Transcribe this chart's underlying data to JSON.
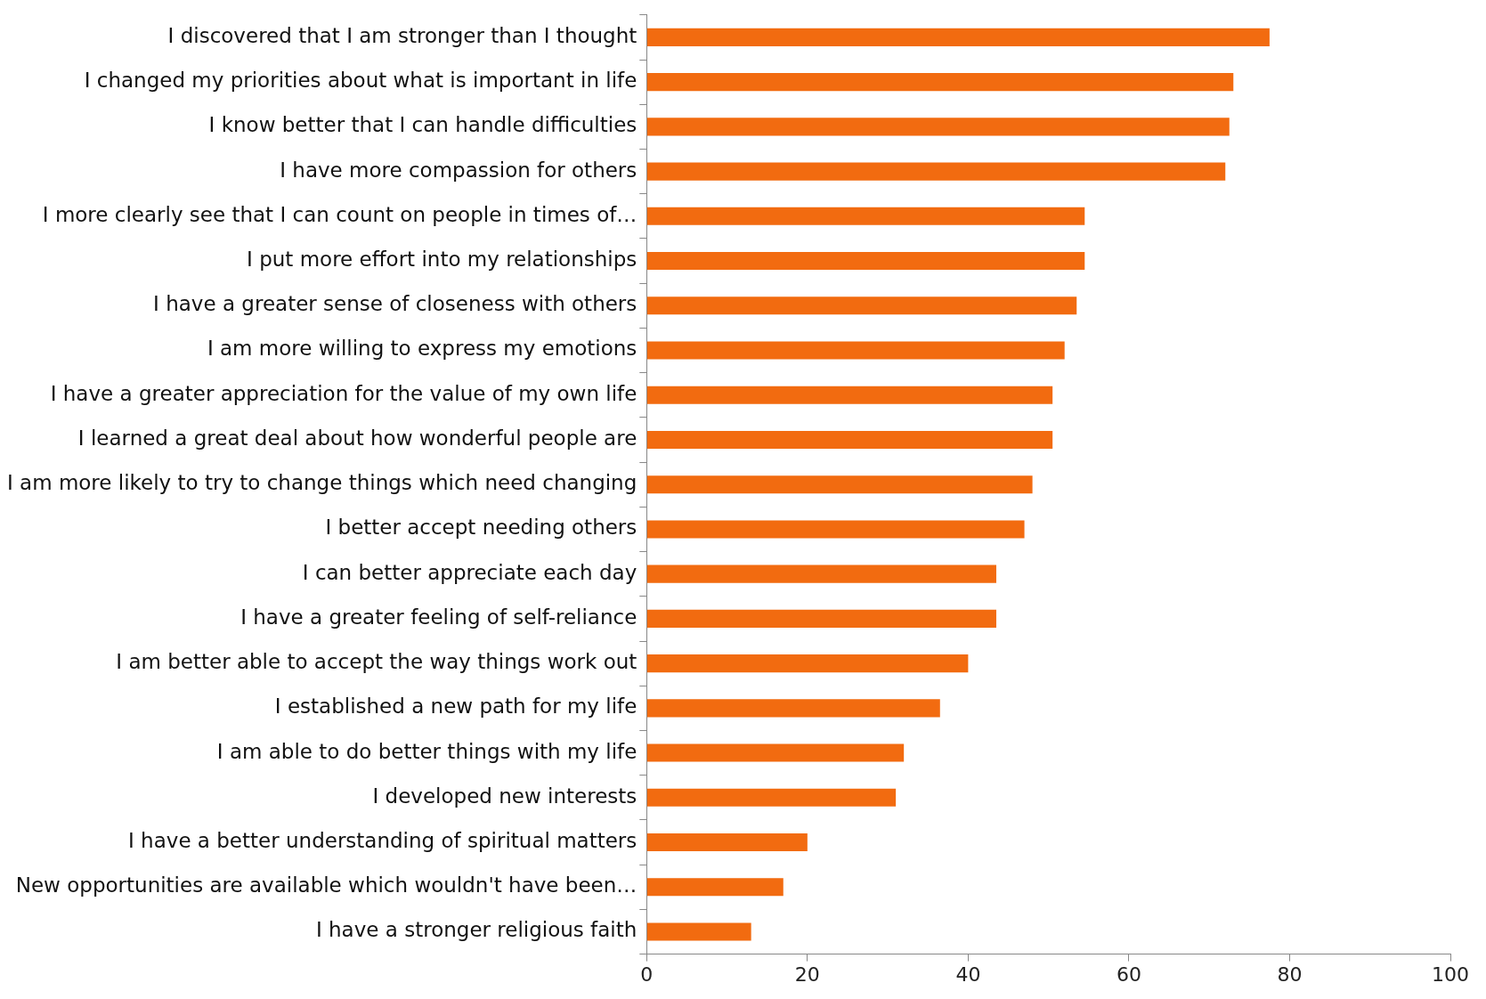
{
  "chart_data": {
    "type": "bar",
    "orientation": "horizontal",
    "categories": [
      "I discovered that I am stronger than I thought",
      "I changed my priorities about what is important in life",
      "I know better that I can handle difficulties",
      "I have more compassion for others",
      "I more clearly see that I can count on people in times of…",
      "I put more effort into my relationships",
      "I have a greater sense of closeness with others",
      "I am more willing to express my emotions",
      "I have a greater appreciation for the value of my own life",
      "I learned a great deal about how wonderful people are",
      "I am more likely to try to change things which need changing",
      "I better accept needing others",
      "I can better appreciate each day",
      "I have a greater feeling of self-reliance",
      "I am better able to accept the way things work out",
      "I established a new path for my life",
      "I am able to do better things with my life",
      "I developed new interests",
      "I have a better understanding of spiritual matters",
      "New opportunities are available which wouldn't have been…",
      "I have a stronger religious faith"
    ],
    "values": [
      77.5,
      73,
      72.5,
      72,
      54.5,
      54.5,
      53.5,
      52,
      50.5,
      50.5,
      48,
      47,
      43.5,
      43.5,
      40,
      36.5,
      32,
      31,
      20,
      17,
      13
    ],
    "color": "#f26b10",
    "xlim": [
      0,
      100
    ],
    "xticks": [
      0,
      20,
      40,
      60,
      80,
      100
    ],
    "grid": false,
    "legend": false
  }
}
